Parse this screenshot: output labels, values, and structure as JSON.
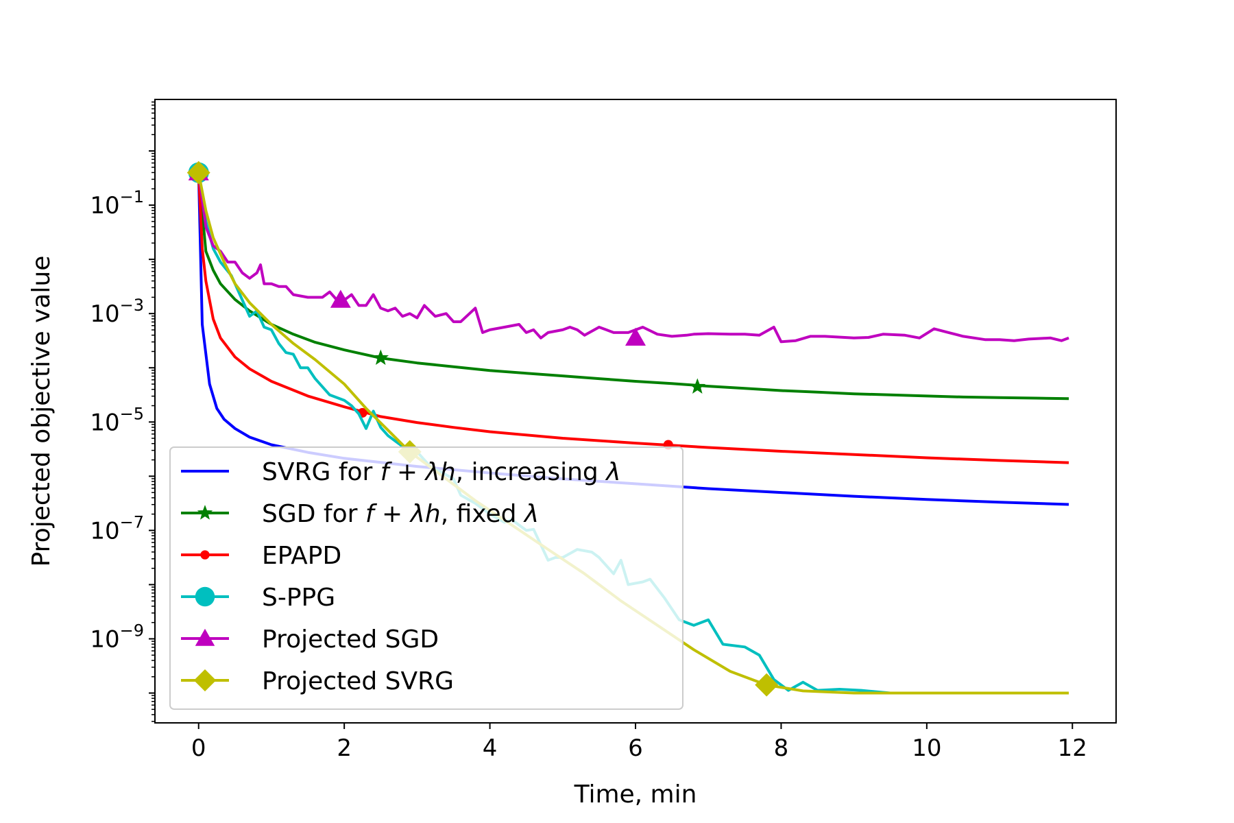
{
  "chart_data": {
    "type": "line",
    "title": "",
    "xlabel": "Time, min",
    "ylabel": "Projected objective value",
    "xlim": [
      -0.6,
      12.6
    ],
    "ylim_log10": [
      -10.55,
      0.95
    ],
    "yscale": "log",
    "x_ticks": [
      0,
      2,
      4,
      6,
      8,
      10,
      12
    ],
    "x_tick_labels": [
      "0",
      "2",
      "4",
      "6",
      "8",
      "10",
      "12"
    ],
    "y_ticks_log10": [
      -1,
      -3,
      -5,
      -7,
      -9
    ],
    "y_tick_bases": [
      "10",
      "10",
      "10",
      "10",
      "10"
    ],
    "y_tick_exponents": [
      "−1",
      "−3",
      "−5",
      "−7",
      "−9"
    ],
    "grid": false,
    "legend_position": "lower-left",
    "series": [
      {
        "name": "SVRG for",
        "math": "f + λh",
        "suffix": ", increasing",
        "suffix_math": "λ",
        "color": "#0000ff",
        "marker": "none",
        "markers_at": [],
        "points": [
          [
            0,
            -0.4
          ],
          [
            0.05,
            -3.2
          ],
          [
            0.15,
            -4.3
          ],
          [
            0.25,
            -4.75
          ],
          [
            0.35,
            -4.95
          ],
          [
            0.5,
            -5.12
          ],
          [
            0.7,
            -5.28
          ],
          [
            1,
            -5.42
          ],
          [
            1.5,
            -5.56
          ],
          [
            2,
            -5.67
          ],
          [
            3,
            -5.82
          ],
          [
            4,
            -5.94
          ],
          [
            5,
            -6.05
          ],
          [
            6,
            -6.14
          ],
          [
            7,
            -6.23
          ],
          [
            8,
            -6.3
          ],
          [
            9,
            -6.37
          ],
          [
            10,
            -6.43
          ],
          [
            11,
            -6.48
          ],
          [
            11.95,
            -6.52
          ]
        ]
      },
      {
        "name": "SGD for",
        "math": "f + λh",
        "suffix": ", fixed",
        "suffix_math": "λ",
        "color": "#008000",
        "marker": "star",
        "markers_at": [
          [
            0,
            -0.4
          ],
          [
            2.5,
            -3.82
          ],
          [
            6.85,
            -4.35
          ]
        ],
        "points": [
          [
            0,
            -0.4
          ],
          [
            0.1,
            -1.85
          ],
          [
            0.2,
            -2.2
          ],
          [
            0.3,
            -2.45
          ],
          [
            0.5,
            -2.74
          ],
          [
            0.7,
            -2.95
          ],
          [
            1,
            -3.2
          ],
          [
            1.3,
            -3.38
          ],
          [
            1.6,
            -3.53
          ],
          [
            2,
            -3.67
          ],
          [
            2.5,
            -3.82
          ],
          [
            3,
            -3.91
          ],
          [
            3.5,
            -3.98
          ],
          [
            4,
            -4.05
          ],
          [
            4.5,
            -4.1
          ],
          [
            5,
            -4.15
          ],
          [
            5.5,
            -4.2
          ],
          [
            6,
            -4.25
          ],
          [
            6.5,
            -4.29
          ],
          [
            7,
            -4.34
          ],
          [
            7.5,
            -4.38
          ],
          [
            8,
            -4.42
          ],
          [
            8.5,
            -4.45
          ],
          [
            9,
            -4.48
          ],
          [
            9.5,
            -4.5
          ],
          [
            10,
            -4.52
          ],
          [
            10.5,
            -4.54
          ],
          [
            11,
            -4.55
          ],
          [
            11.5,
            -4.56
          ],
          [
            11.95,
            -4.57
          ]
        ]
      },
      {
        "name": "EPAPD",
        "math": "",
        "suffix": "",
        "suffix_math": "",
        "color": "#ff0000",
        "marker": "dot",
        "markers_at": [
          [
            0,
            -0.4
          ],
          [
            2.25,
            -4.83
          ],
          [
            6.45,
            -5.42
          ]
        ],
        "points": [
          [
            0,
            -0.4
          ],
          [
            0.05,
            -1.8
          ],
          [
            0.1,
            -2.4
          ],
          [
            0.2,
            -3.1
          ],
          [
            0.3,
            -3.45
          ],
          [
            0.5,
            -3.8
          ],
          [
            0.7,
            -4.02
          ],
          [
            1,
            -4.25
          ],
          [
            1.5,
            -4.52
          ],
          [
            2,
            -4.72
          ],
          [
            2.5,
            -4.9
          ],
          [
            3,
            -5.01
          ],
          [
            3.5,
            -5.1
          ],
          [
            4,
            -5.18
          ],
          [
            5,
            -5.3
          ],
          [
            6,
            -5.39
          ],
          [
            7,
            -5.47
          ],
          [
            8,
            -5.54
          ],
          [
            9,
            -5.6
          ],
          [
            10,
            -5.66
          ],
          [
            11,
            -5.71
          ],
          [
            11.95,
            -5.75
          ]
        ]
      },
      {
        "name": "S-PPG",
        "math": "",
        "suffix": "",
        "suffix_math": "",
        "color": "#00bfbf",
        "marker": "circle",
        "markers_at": [
          [
            0,
            -0.4
          ]
        ],
        "points": [
          [
            0,
            -0.4
          ],
          [
            0.1,
            -1.3
          ],
          [
            0.2,
            -1.8
          ],
          [
            0.3,
            -2.05
          ],
          [
            0.45,
            -2.3
          ],
          [
            0.6,
            -2.75
          ],
          [
            0.7,
            -3.05
          ],
          [
            0.8,
            -2.95
          ],
          [
            0.9,
            -3.25
          ],
          [
            1,
            -3.3
          ],
          [
            1.1,
            -3.55
          ],
          [
            1.2,
            -3.72
          ],
          [
            1.3,
            -3.75
          ],
          [
            1.4,
            -4.0
          ],
          [
            1.5,
            -4.0
          ],
          [
            1.6,
            -4.2
          ],
          [
            1.7,
            -4.35
          ],
          [
            1.8,
            -4.5
          ],
          [
            2,
            -4.6
          ],
          [
            2.1,
            -4.7
          ],
          [
            2.2,
            -4.85
          ],
          [
            2.3,
            -5.12
          ],
          [
            2.4,
            -4.8
          ],
          [
            2.5,
            -5.1
          ],
          [
            2.6,
            -5.25
          ],
          [
            2.7,
            -5.35
          ],
          [
            2.8,
            -5.45
          ],
          [
            2.9,
            -5.6
          ],
          [
            3.0,
            -5.55
          ],
          [
            3.1,
            -5.7
          ],
          [
            3.2,
            -5.85
          ],
          [
            3.3,
            -5.9
          ],
          [
            3.5,
            -6.05
          ],
          [
            3.6,
            -6.35
          ],
          [
            3.8,
            -6.5
          ],
          [
            4,
            -6.7
          ],
          [
            4.2,
            -6.85
          ],
          [
            4.3,
            -6.8
          ],
          [
            4.5,
            -7.0
          ],
          [
            4.6,
            -6.98
          ],
          [
            4.8,
            -7.55
          ],
          [
            4.9,
            -7.5
          ],
          [
            5.0,
            -7.5
          ],
          [
            5.2,
            -7.35
          ],
          [
            5.4,
            -7.4
          ],
          [
            5.5,
            -7.5
          ],
          [
            5.7,
            -7.8
          ],
          [
            5.8,
            -7.55
          ],
          [
            5.9,
            -8.0
          ],
          [
            6.1,
            -7.95
          ],
          [
            6.2,
            -7.9
          ],
          [
            6.4,
            -8.25
          ],
          [
            6.6,
            -8.65
          ],
          [
            6.8,
            -8.75
          ],
          [
            7.0,
            -8.65
          ],
          [
            7.2,
            -9.1
          ],
          [
            7.5,
            -9.15
          ],
          [
            7.7,
            -9.3
          ],
          [
            7.9,
            -9.75
          ],
          [
            8.1,
            -9.95
          ],
          [
            8.3,
            -9.8
          ],
          [
            8.5,
            -9.95
          ],
          [
            8.8,
            -9.93
          ],
          [
            9.1,
            -9.95
          ],
          [
            9.5,
            -10.0
          ],
          [
            10,
            -10.0
          ],
          [
            11,
            -10.0
          ],
          [
            11.95,
            -10.0
          ]
        ]
      },
      {
        "name": "Projected SGD",
        "math": "",
        "suffix": "",
        "suffix_math": "",
        "color": "#bf00bf",
        "marker": "triangle",
        "markers_at": [
          [
            0,
            -0.4
          ],
          [
            1.95,
            -2.75
          ],
          [
            6,
            -3.45
          ]
        ],
        "points": [
          [
            0,
            -0.4
          ],
          [
            0.1,
            -1.4
          ],
          [
            0.2,
            -1.75
          ],
          [
            0.3,
            -1.85
          ],
          [
            0.4,
            -2.05
          ],
          [
            0.5,
            -2.05
          ],
          [
            0.6,
            -2.25
          ],
          [
            0.7,
            -2.35
          ],
          [
            0.8,
            -2.25
          ],
          [
            0.85,
            -2.1
          ],
          [
            0.9,
            -2.45
          ],
          [
            1.0,
            -2.45
          ],
          [
            1.1,
            -2.5
          ],
          [
            1.2,
            -2.5
          ],
          [
            1.3,
            -2.65
          ],
          [
            1.5,
            -2.7
          ],
          [
            1.7,
            -2.7
          ],
          [
            1.8,
            -2.6
          ],
          [
            1.9,
            -2.75
          ],
          [
            2.0,
            -2.75
          ],
          [
            2.1,
            -2.65
          ],
          [
            2.2,
            -2.85
          ],
          [
            2.3,
            -2.85
          ],
          [
            2.4,
            -2.65
          ],
          [
            2.5,
            -2.9
          ],
          [
            2.6,
            -2.95
          ],
          [
            2.7,
            -2.9
          ],
          [
            2.8,
            -3.05
          ],
          [
            2.9,
            -3.0
          ],
          [
            3.0,
            -3.08
          ],
          [
            3.1,
            -2.85
          ],
          [
            3.25,
            -3.05
          ],
          [
            3.4,
            -3.0
          ],
          [
            3.5,
            -3.15
          ],
          [
            3.6,
            -3.15
          ],
          [
            3.8,
            -2.9
          ],
          [
            3.9,
            -3.35
          ],
          [
            4.0,
            -3.3
          ],
          [
            4.2,
            -3.25
          ],
          [
            4.4,
            -3.2
          ],
          [
            4.5,
            -3.35
          ],
          [
            4.6,
            -3.3
          ],
          [
            4.7,
            -3.45
          ],
          [
            4.8,
            -3.35
          ],
          [
            5.0,
            -3.3
          ],
          [
            5.1,
            -3.25
          ],
          [
            5.2,
            -3.3
          ],
          [
            5.3,
            -3.4
          ],
          [
            5.5,
            -3.25
          ],
          [
            5.6,
            -3.3
          ],
          [
            5.7,
            -3.35
          ],
          [
            5.9,
            -3.35
          ],
          [
            6.1,
            -3.25
          ],
          [
            6.3,
            -3.38
          ],
          [
            6.5,
            -3.42
          ],
          [
            6.7,
            -3.4
          ],
          [
            6.8,
            -3.38
          ],
          [
            7.0,
            -3.37
          ],
          [
            7.3,
            -3.38
          ],
          [
            7.5,
            -3.38
          ],
          [
            7.7,
            -3.4
          ],
          [
            7.9,
            -3.25
          ],
          [
            8.0,
            -3.52
          ],
          [
            8.2,
            -3.5
          ],
          [
            8.4,
            -3.42
          ],
          [
            8.6,
            -3.42
          ],
          [
            9.0,
            -3.45
          ],
          [
            9.2,
            -3.44
          ],
          [
            9.4,
            -3.38
          ],
          [
            9.7,
            -3.4
          ],
          [
            9.9,
            -3.45
          ],
          [
            10.1,
            -3.28
          ],
          [
            10.3,
            -3.35
          ],
          [
            10.5,
            -3.42
          ],
          [
            10.8,
            -3.48
          ],
          [
            11.0,
            -3.48
          ],
          [
            11.2,
            -3.5
          ],
          [
            11.4,
            -3.47
          ],
          [
            11.7,
            -3.45
          ],
          [
            11.85,
            -3.5
          ],
          [
            11.95,
            -3.45
          ]
        ]
      },
      {
        "name": "Projected SVRG",
        "math": "",
        "suffix": "",
        "suffix_math": "",
        "color": "#bfbf00",
        "marker": "diamond",
        "markers_at": [
          [
            0,
            -0.4
          ],
          [
            2.9,
            -5.55
          ],
          [
            7.8,
            -9.85
          ]
        ],
        "points": [
          [
            0,
            -0.4
          ],
          [
            0.1,
            -1.1
          ],
          [
            0.2,
            -1.6
          ],
          [
            0.35,
            -2.05
          ],
          [
            0.5,
            -2.45
          ],
          [
            0.7,
            -2.8
          ],
          [
            1,
            -3.2
          ],
          [
            1.3,
            -3.55
          ],
          [
            1.6,
            -3.85
          ],
          [
            2,
            -4.3
          ],
          [
            2.3,
            -4.75
          ],
          [
            2.6,
            -5.15
          ],
          [
            2.9,
            -5.55
          ],
          [
            3.3,
            -5.95
          ],
          [
            3.8,
            -6.45
          ],
          [
            4.3,
            -6.9
          ],
          [
            4.8,
            -7.35
          ],
          [
            5.3,
            -7.8
          ],
          [
            5.8,
            -8.3
          ],
          [
            6.3,
            -8.75
          ],
          [
            6.8,
            -9.2
          ],
          [
            7.3,
            -9.6
          ],
          [
            7.8,
            -9.85
          ],
          [
            8.3,
            -9.96
          ],
          [
            9,
            -10.0
          ],
          [
            10,
            -10.0
          ],
          [
            11,
            -10.0
          ],
          [
            11.95,
            -10.0
          ]
        ]
      }
    ]
  }
}
